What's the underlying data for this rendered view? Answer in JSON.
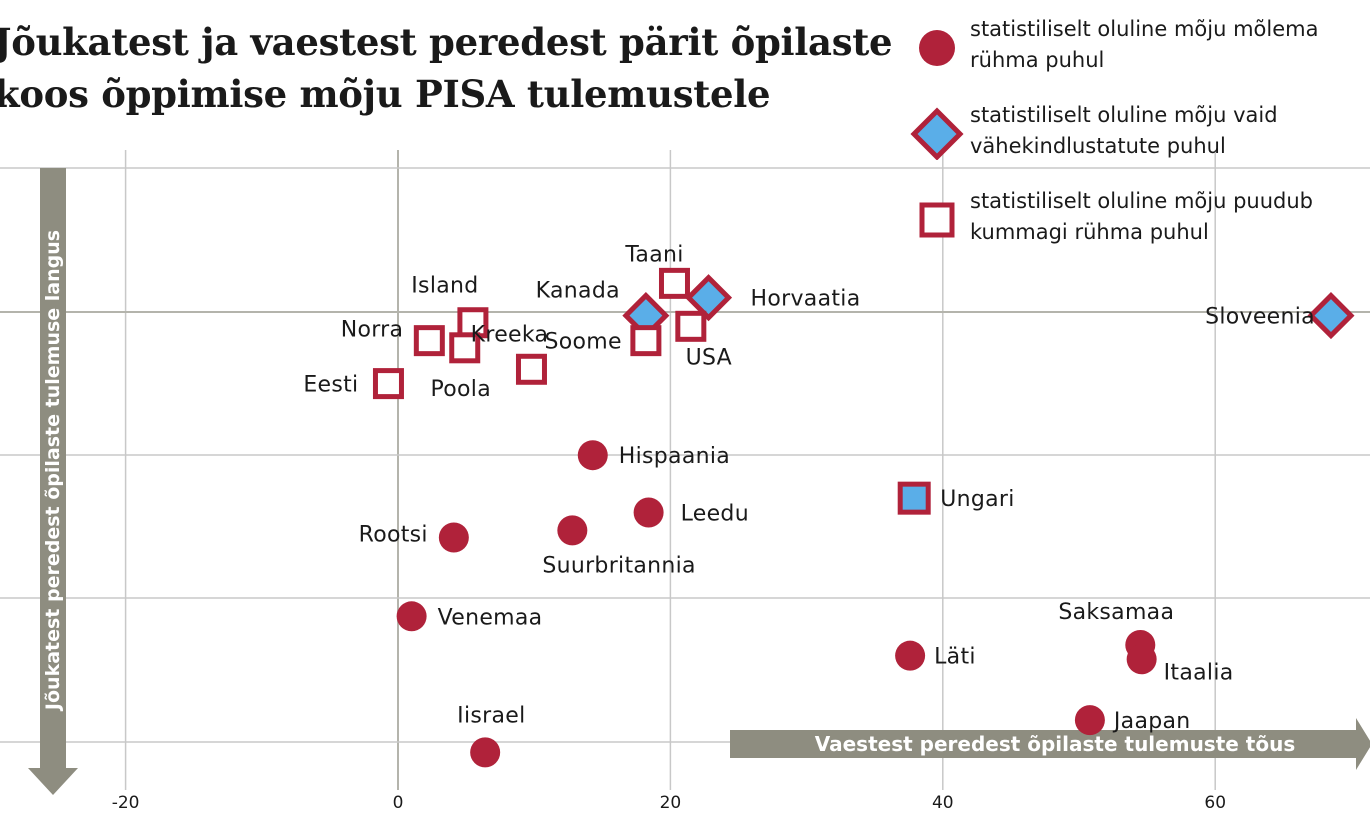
{
  "chart_data": {
    "type": "scatter",
    "title": "Jõukatest ja vaestest peredest pärit õpilaste koos õppimise mõju PISA tulemustele",
    "xlabel": "Vaestest peredest õpilaste tulemuste tõus",
    "ylabel": "Jõukatest peredest õpilaste tulemuse langus",
    "xlim": [
      -30,
      72
    ],
    "x_ticks": [
      "-20",
      "0",
      "20",
      "40",
      "60"
    ],
    "grid": true,
    "legend": [
      {
        "marker": "circle",
        "label": "statistiliselt oluline mõju mõlema\nrühma puhul"
      },
      {
        "marker": "diamond",
        "label": "statistiliselt oluline mõju vaid\nvähekindlustatute puhul"
      },
      {
        "marker": "square",
        "label": "statistiliselt oluline mõju puudub\nkummagi rühma puhul"
      }
    ],
    "points": [
      {
        "label": "Kreeka",
        "x": 9.8,
        "y": -5.6,
        "marker": "square"
      },
      {
        "label": "Taani",
        "x": 20.3,
        "y": -3.2,
        "marker": "square"
      },
      {
        "label": "Island",
        "x": 5.5,
        "y": -4.3,
        "marker": "square"
      },
      {
        "label": "Kanada",
        "x": 18.2,
        "y": -4.1,
        "marker": "diamond"
      },
      {
        "label": "Horvaatia",
        "x": 22.8,
        "y": -3.6,
        "marker": "diamond"
      },
      {
        "label": "Sloveenia",
        "x": 68.5,
        "y": -4.1,
        "marker": "diamond"
      },
      {
        "label": "Norra",
        "x": 2.3,
        "y": -4.8,
        "marker": "square"
      },
      {
        "label": "Poola",
        "x": 4.9,
        "y": -5.0,
        "marker": "square"
      },
      {
        "label": "Soome",
        "x": 18.2,
        "y": -4.8,
        "marker": "square"
      },
      {
        "label": "USA",
        "x": 21.5,
        "y": -4.4,
        "marker": "square"
      },
      {
        "label": "Eesti",
        "x": -0.7,
        "y": -6.0,
        "marker": "square"
      },
      {
        "label": "Hispaania",
        "x": 14.3,
        "y": -8.0,
        "marker": "circle"
      },
      {
        "label": "Ungari",
        "x": 37.9,
        "y": -9.2,
        "marker": "square-filled"
      },
      {
        "label": "Leedu",
        "x": 18.4,
        "y": -9.6,
        "marker": "circle"
      },
      {
        "label": "Rootsi",
        "x": 4.1,
        "y": -10.3,
        "marker": "circle"
      },
      {
        "label": "Suurbritannia",
        "x": 12.8,
        "y": -10.1,
        "marker": "circle"
      },
      {
        "label": "Venemaa",
        "x": 1.0,
        "y": -12.5,
        "marker": "circle"
      },
      {
        "label": "Saksamaa",
        "x": 54.5,
        "y": -13.3,
        "marker": "circle"
      },
      {
        "label": "Läti",
        "x": 37.6,
        "y": -13.6,
        "marker": "circle"
      },
      {
        "label": "Itaalia",
        "x": 54.6,
        "y": -13.7,
        "marker": "circle"
      },
      {
        "label": "Jaapan",
        "x": 50.8,
        "y": -15.4,
        "marker": "circle"
      },
      {
        "label": "Iisrael",
        "x": 6.4,
        "y": -16.3,
        "marker": "circle"
      }
    ],
    "colors": {
      "marker": "#b0223a",
      "diamond_fill": "#5aaee8",
      "axis_arrow": "#8e8d80",
      "grid": "#c8c8c8"
    }
  }
}
